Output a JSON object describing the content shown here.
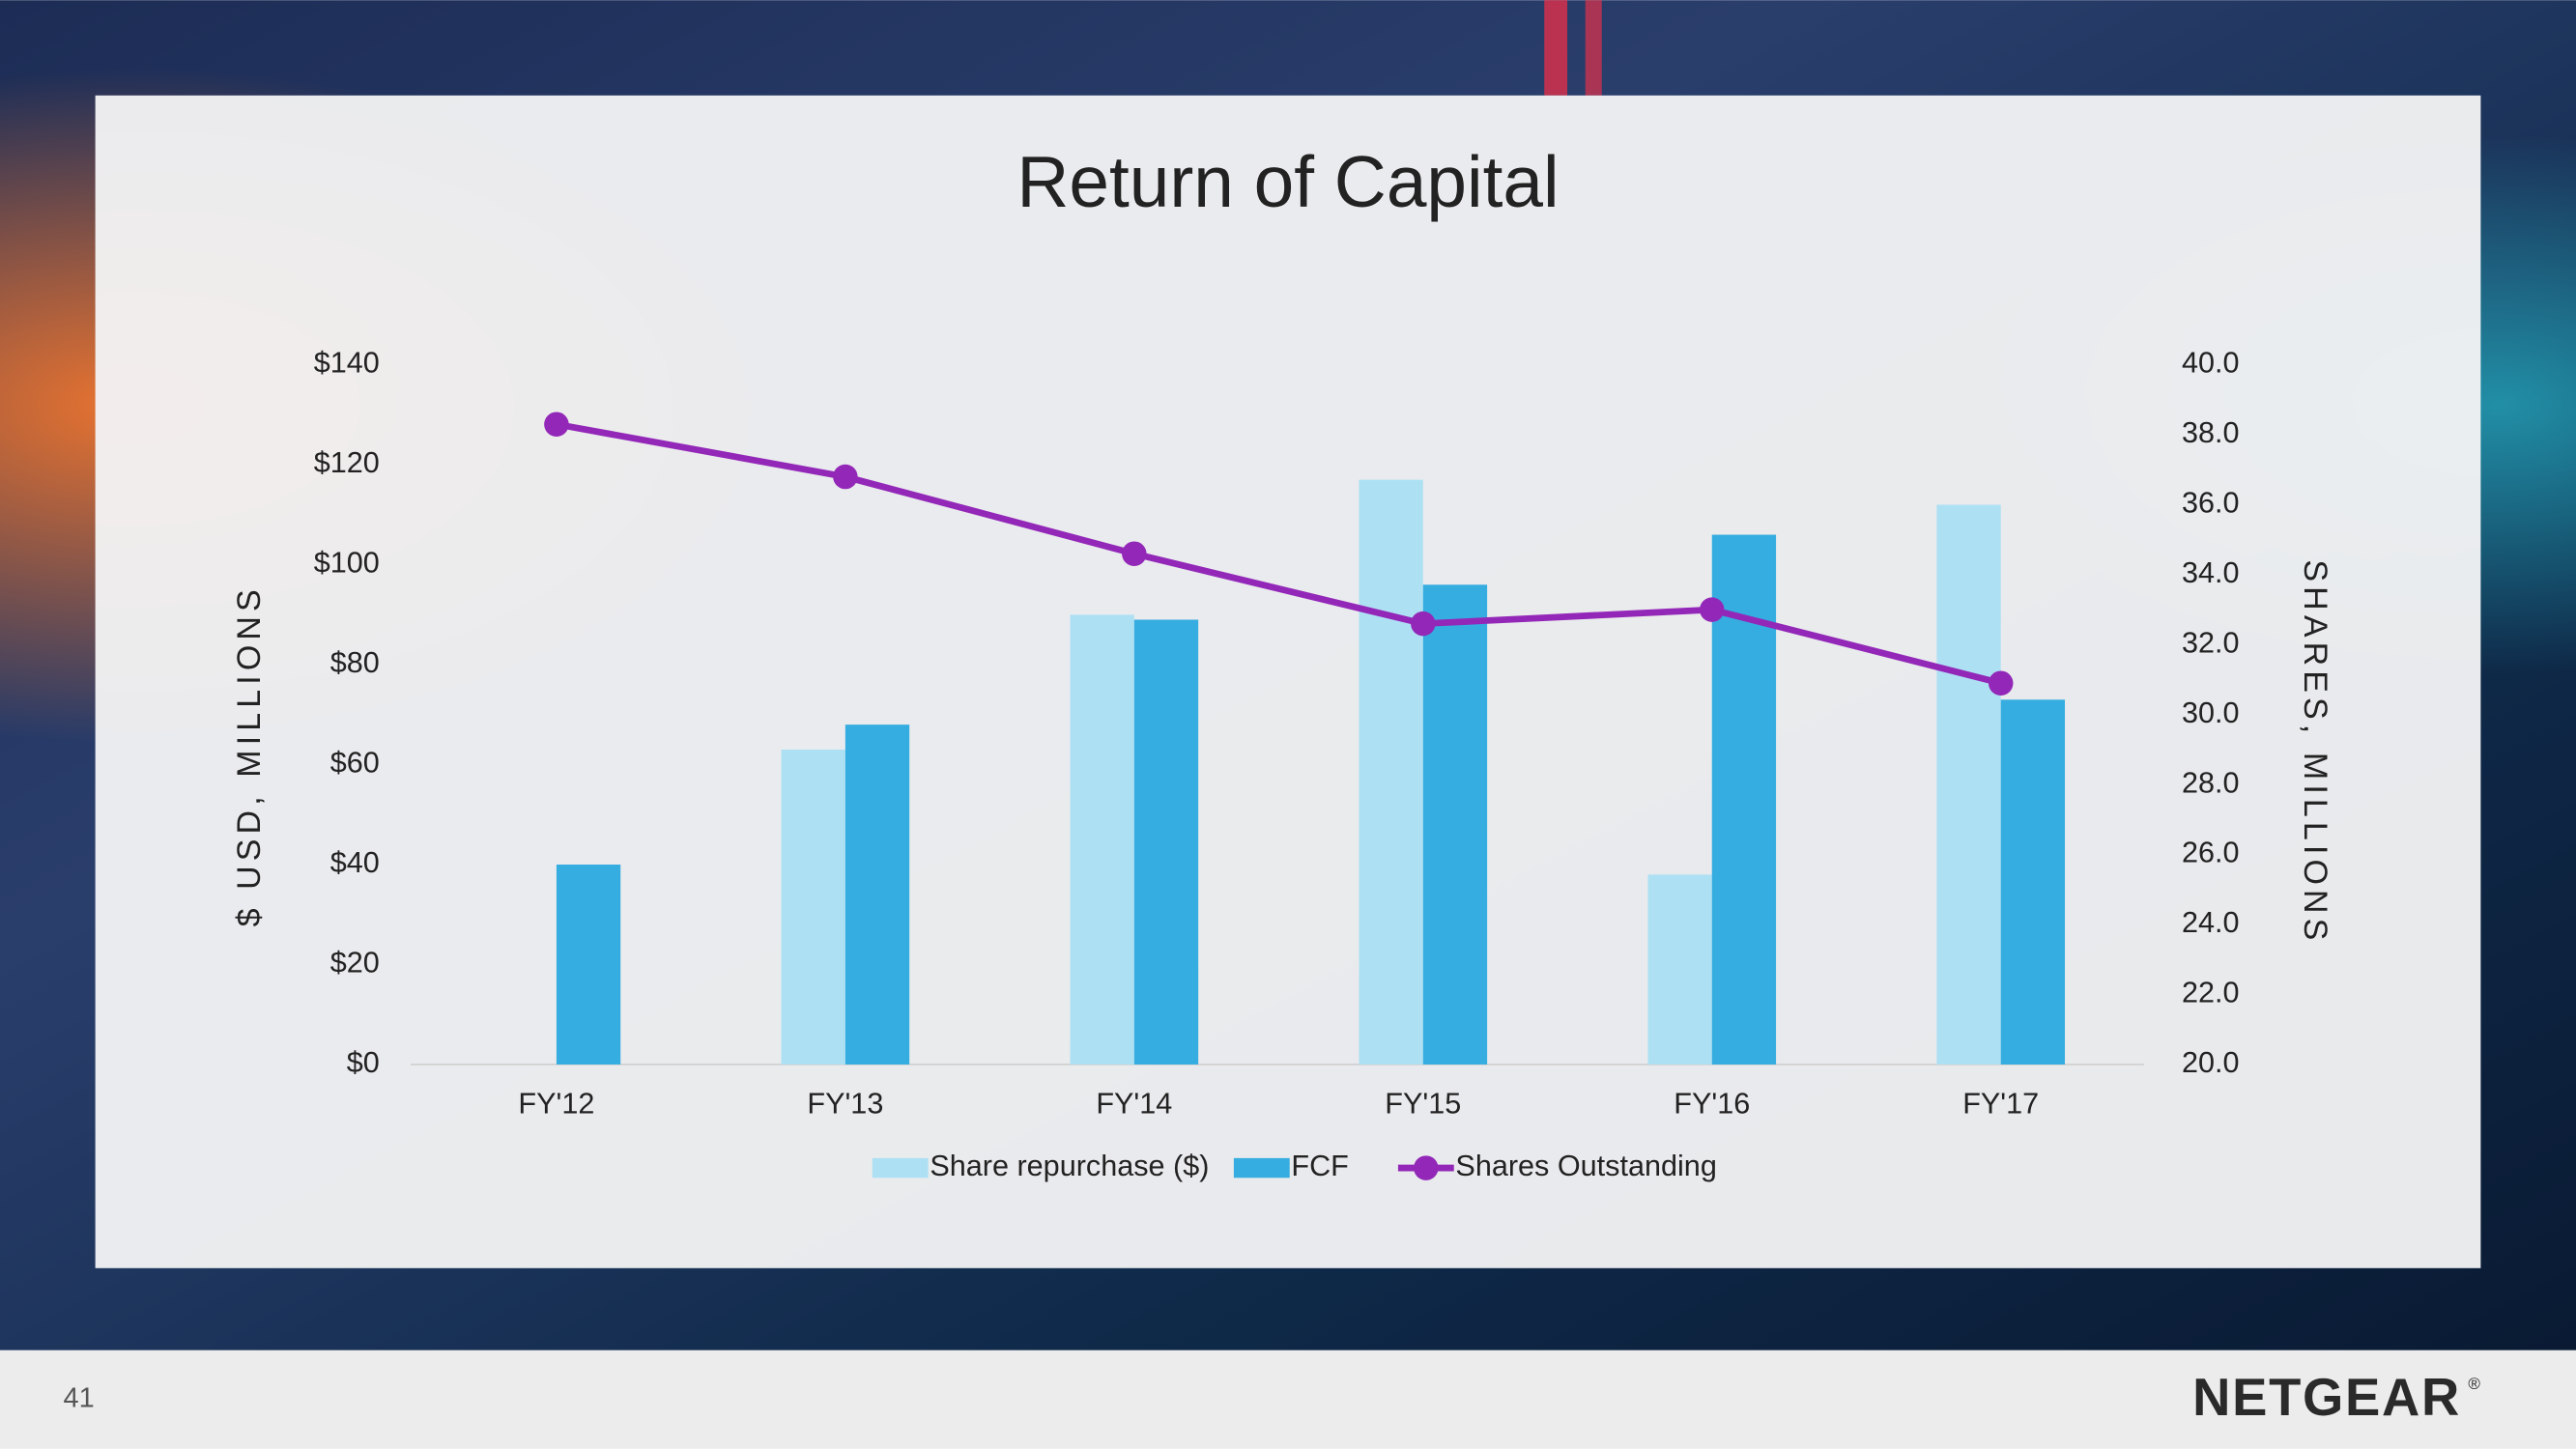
{
  "chart_data": {
    "type": "bar-line",
    "title": "Return of Capital",
    "categories": [
      "FY'12",
      "FY'13",
      "FY'14",
      "FY'15",
      "FY'16",
      "FY'17"
    ],
    "series": [
      {
        "name": "Share repurchase ($)",
        "color": "#aee0f4",
        "type": "bar",
        "values": [
          null,
          63,
          90,
          117,
          38,
          112
        ]
      },
      {
        "name": "FCF",
        "color": "#35ade0",
        "type": "bar",
        "values": [
          40,
          68,
          89,
          96,
          106,
          73
        ]
      },
      {
        "name": "Shares Outstanding",
        "color": "#9328b8",
        "type": "line",
        "axis": "y2",
        "values": [
          38.3,
          36.8,
          34.6,
          32.6,
          33.0,
          30.9
        ]
      }
    ],
    "y_label": "$ USD, MILLIONS",
    "y2_label": "SHARES, MILLIONS",
    "ylim": [
      0,
      140
    ],
    "yticks": [
      {
        "value": 0,
        "label": "$0"
      },
      {
        "value": 20,
        "label": "$20"
      },
      {
        "value": 40,
        "label": "$40"
      },
      {
        "value": 60,
        "label": "$60"
      },
      {
        "value": 80,
        "label": "$80"
      },
      {
        "value": 100,
        "label": "$100"
      },
      {
        "value": 120,
        "label": "$120"
      },
      {
        "value": 140,
        "label": "$140"
      }
    ],
    "y2lim": [
      20,
      40
    ],
    "y2ticks": [
      {
        "value": 20,
        "label": "20.0"
      },
      {
        "value": 22,
        "label": "22.0"
      },
      {
        "value": 24,
        "label": "24.0"
      },
      {
        "value": 26,
        "label": "26.0"
      },
      {
        "value": 28,
        "label": "28.0"
      },
      {
        "value": 30,
        "label": "30.0"
      },
      {
        "value": 32,
        "label": "32.0"
      },
      {
        "value": 34,
        "label": "34.0"
      },
      {
        "value": 36,
        "label": "36.0"
      },
      {
        "value": 38,
        "label": "38.0"
      },
      {
        "value": 40,
        "label": "40.0"
      }
    ],
    "legend": "bottom",
    "grid": false
  },
  "slide": {
    "page_number": "41",
    "logo": "NETGEAR",
    "logo_mark": "®"
  }
}
